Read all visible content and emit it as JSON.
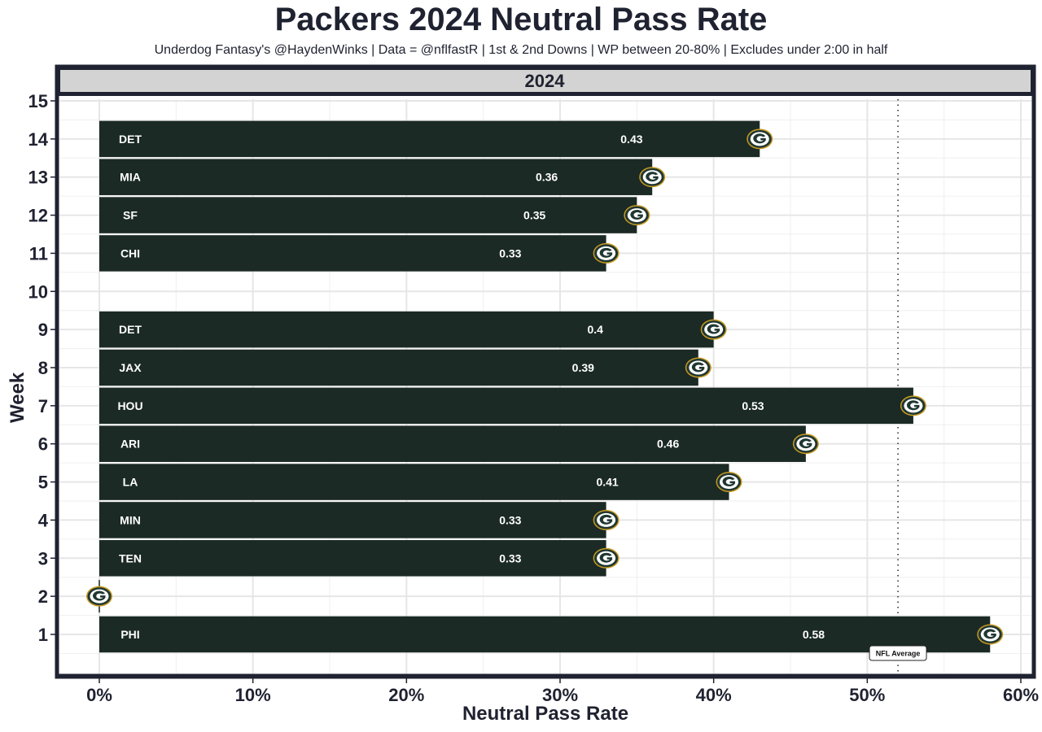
{
  "chart_data": {
    "type": "bar",
    "orientation": "horizontal",
    "title": "Packers 2024 Neutral Pass Rate",
    "subtitle": "Underdog Fantasy's @HaydenWinks | Data = @nflfastR | 1st & 2nd Downs | WP between 20-80% | Excludes under 2:00 in half",
    "facet_label": "2024",
    "xlabel": "Neutral Pass Rate",
    "ylabel": "Week",
    "xlim": [
      0,
      0.6
    ],
    "ylim": [
      0,
      15
    ],
    "x_ticks": [
      {
        "value": 0,
        "label": "0%"
      },
      {
        "value": 0.1,
        "label": "10%"
      },
      {
        "value": 0.2,
        "label": "20%"
      },
      {
        "value": 0.3,
        "label": "30%"
      },
      {
        "value": 0.4,
        "label": "40%"
      },
      {
        "value": 0.5,
        "label": "50%"
      },
      {
        "value": 0.6,
        "label": "60%"
      }
    ],
    "y_ticks": [
      {
        "value": 1,
        "label": "1"
      },
      {
        "value": 2,
        "label": "2"
      },
      {
        "value": 3,
        "label": "3"
      },
      {
        "value": 4,
        "label": "4"
      },
      {
        "value": 5,
        "label": "5"
      },
      {
        "value": 6,
        "label": "6"
      },
      {
        "value": 7,
        "label": "7"
      },
      {
        "value": 8,
        "label": "8"
      },
      {
        "value": 9,
        "label": "9"
      },
      {
        "value": 10,
        "label": "10"
      },
      {
        "value": 11,
        "label": "11"
      },
      {
        "value": 12,
        "label": "12"
      },
      {
        "value": 13,
        "label": "13"
      },
      {
        "value": 14,
        "label": "14"
      },
      {
        "value": 15,
        "label": "15"
      }
    ],
    "grid": true,
    "bars": [
      {
        "week": 14,
        "opponent": "DET",
        "value": 0.43,
        "label": "0.43"
      },
      {
        "week": 13,
        "opponent": "MIA",
        "value": 0.36,
        "label": "0.36"
      },
      {
        "week": 12,
        "opponent": "SF",
        "value": 0.35,
        "label": "0.35"
      },
      {
        "week": 11,
        "opponent": "CHI",
        "value": 0.33,
        "label": "0.33"
      },
      {
        "week": 9,
        "opponent": "DET",
        "value": 0.4,
        "label": "0.4"
      },
      {
        "week": 8,
        "opponent": "JAX",
        "value": 0.39,
        "label": "0.39"
      },
      {
        "week": 7,
        "opponent": "HOU",
        "value": 0.53,
        "label": "0.53"
      },
      {
        "week": 6,
        "opponent": "ARI",
        "value": 0.46,
        "label": "0.46"
      },
      {
        "week": 5,
        "opponent": "LA",
        "value": 0.41,
        "label": "0.41"
      },
      {
        "week": 4,
        "opponent": "MIN",
        "value": 0.33,
        "label": "0.33"
      },
      {
        "week": 3,
        "opponent": "TEN",
        "value": 0.33,
        "label": "0.33"
      },
      {
        "week": 2,
        "opponent": "",
        "value": 0,
        "label": ""
      },
      {
        "week": 1,
        "opponent": "PHI",
        "value": 0.58,
        "label": "0.58"
      }
    ],
    "reference_line": {
      "value": 0.52,
      "label": "NFL Average",
      "style": "dotted"
    },
    "marker_icon": "packers-g-logo-icon",
    "colors": {
      "bar": "#1b2a24",
      "bar_text": "#ffffff",
      "logo_green": "#203731",
      "logo_gold": "#c79a23",
      "panel_border": "#1f2230",
      "strip_fill": "#d3d3d3",
      "grid": "#e6e6e6",
      "text": "#1f2230"
    }
  }
}
